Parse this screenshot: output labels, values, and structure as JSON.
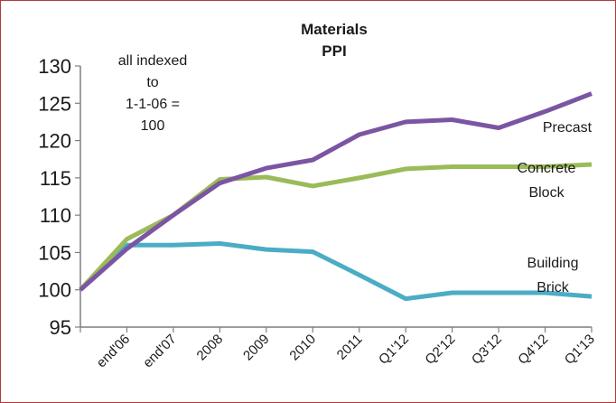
{
  "chart_data": {
    "type": "line",
    "title_lines": [
      "Materials",
      "PPI"
    ],
    "annotation_lines": [
      "all indexed",
      "to",
      "1-1-06 =",
      "100"
    ],
    "categories": [
      "end'06",
      "end'07",
      "2008",
      "2009",
      "2010",
      "2011",
      "Q1'12",
      "Q2'12",
      "Q3'12",
      "Q4'12",
      "Q1'13"
    ],
    "x_start_value": 100,
    "ylim": [
      95,
      130
    ],
    "yticks": [
      95,
      100,
      105,
      110,
      115,
      120,
      125,
      130
    ],
    "grid": false,
    "legend": "none (direct series labels)",
    "series": [
      {
        "name": "Precast",
        "label_lines": [
          "Precast"
        ],
        "color": "#7b55a3",
        "values": [
          105.5,
          110.0,
          114.3,
          116.3,
          117.4,
          120.8,
          122.5,
          122.8,
          121.7,
          123.9,
          126.3
        ]
      },
      {
        "name": "Concrete Block",
        "label_lines": [
          "Concrete",
          "Block"
        ],
        "color": "#9bbb59",
        "values": [
          106.8,
          110.0,
          114.8,
          115.1,
          113.9,
          115.0,
          116.2,
          116.5,
          116.5,
          116.5,
          116.8
        ]
      },
      {
        "name": "Building Brick",
        "label_lines": [
          "Building",
          "Brick"
        ],
        "color": "#4bacc6",
        "values": [
          106.0,
          106.0,
          106.2,
          105.4,
          105.1,
          102.0,
          98.8,
          99.6,
          99.6,
          99.6,
          99.1
        ]
      }
    ]
  }
}
